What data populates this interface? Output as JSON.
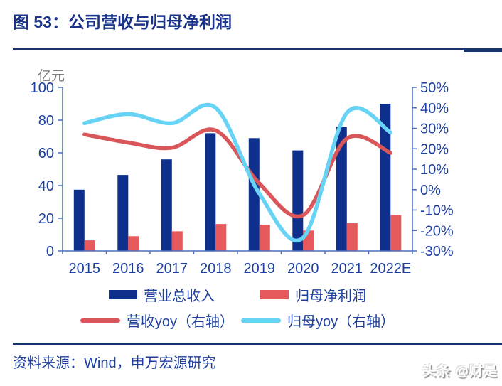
{
  "figure": {
    "title": "图 53：公司营收与归母净利润",
    "source": "资料来源：Wind，申万宏源研究",
    "watermark": "头条 @财是"
  },
  "chart_data": {
    "type": "combo-bar-line",
    "title": "公司营收与归母净利润",
    "unit_label": "亿元",
    "categories": [
      "2015",
      "2016",
      "2017",
      "2018",
      "2019",
      "2020",
      "2021",
      "2022E"
    ],
    "series": [
      {
        "name": "营业总收入",
        "kind": "bar",
        "axis": "left",
        "color": "#0f2f8c",
        "values": [
          37.5,
          46.5,
          56,
          72,
          69,
          61.5,
          76,
          90
        ]
      },
      {
        "name": "归母净利润",
        "kind": "bar",
        "axis": "left",
        "color": "#e6595c",
        "values": [
          6.5,
          9,
          12,
          16.5,
          16,
          12.5,
          17,
          22
        ]
      },
      {
        "name": "营收yoy（右轴）",
        "kind": "line",
        "axis": "right",
        "color": "#d9575a",
        "values": [
          27,
          23,
          20.5,
          29,
          3,
          -12.5,
          25,
          18
        ]
      },
      {
        "name": "归母yoy（右轴）",
        "kind": "line",
        "axis": "right",
        "color": "#67d3f5",
        "values": [
          32.5,
          37,
          32.5,
          40,
          -2,
          -23.5,
          37.5,
          28
        ]
      }
    ],
    "left_axis": {
      "min": 0,
      "max": 100,
      "step": 20,
      "ticks": [
        "0",
        "20",
        "40",
        "60",
        "80",
        "100"
      ]
    },
    "right_axis": {
      "min": -30,
      "max": 50,
      "step": 10,
      "ticks": [
        "-30%",
        "-20%",
        "-10%",
        "0%",
        "10%",
        "20%",
        "30%",
        "40%",
        "50%"
      ]
    },
    "grid": false,
    "legend_position": "bottom",
    "colors": {
      "axis": "#4c6fc0",
      "axis_text": "#1d3f9e",
      "title_text": "#19328a"
    }
  }
}
